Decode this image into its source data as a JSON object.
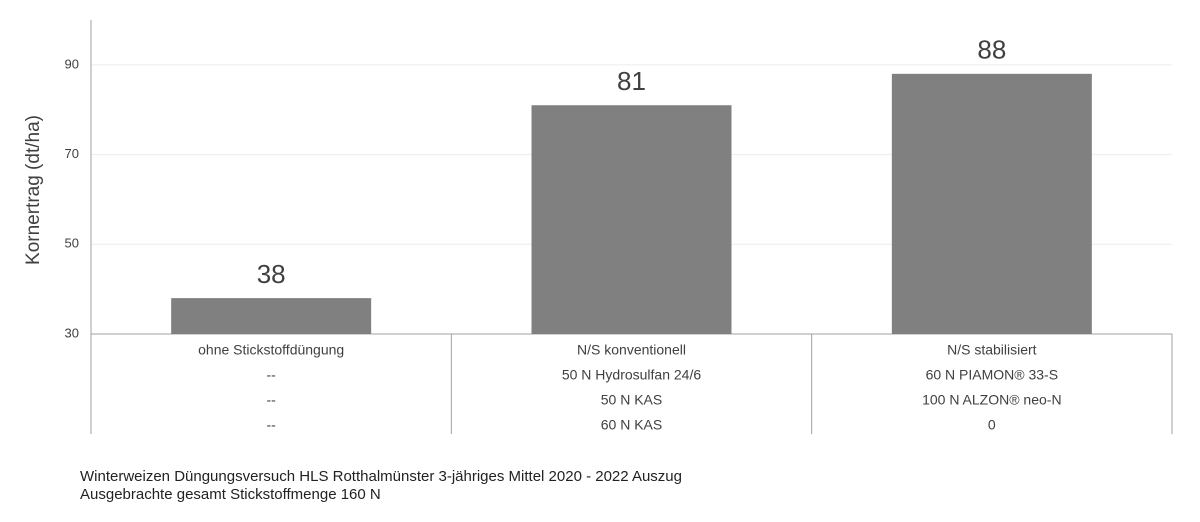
{
  "chart_data": {
    "type": "bar",
    "y_label": "Kornertrag (dt/ha)",
    "categories": [
      "ohne Stickstoffdüngung",
      "N/S konventionell",
      "N/S stabilisiert"
    ],
    "category_details": [
      [
        "--",
        "--",
        "--"
      ],
      [
        "50 N Hydrosulfan 24/6",
        "50 N KAS",
        "60 N KAS"
      ],
      [
        "60 N   PIAMON® 33-S",
        "100 N ALZON® neo-N",
        "0"
      ]
    ],
    "values": [
      38,
      81,
      88
    ],
    "color": "#808080",
    "ylim": [
      30,
      100
    ],
    "yticks": [
      30,
      50,
      70,
      90
    ],
    "grid": true,
    "notes": [
      "Winterweizen Düngungsversuch HLS Rotthalmünster 3-jähriges Mittel 2020 - 2022 Auszug",
      "Ausgebrachte gesamt Stickstoffmenge 160 N"
    ]
  }
}
